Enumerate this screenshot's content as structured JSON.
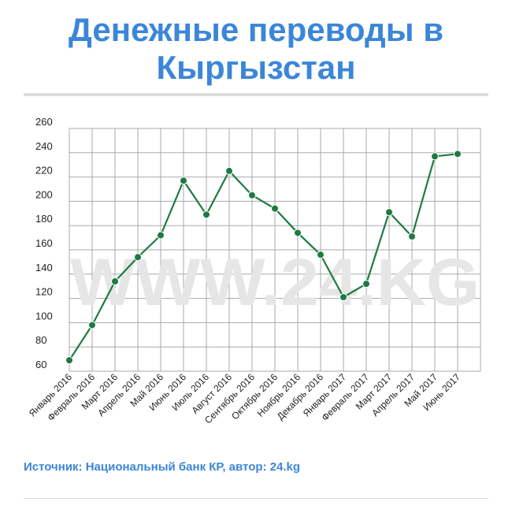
{
  "header": {
    "title_line1": "Денежные переводы в",
    "title_line2": "Кыргызстан"
  },
  "watermark": "WWW.24.KG",
  "source": "Источник: Национальный банк КР, автор: 24.kg",
  "colors": {
    "title": "#3b86d9",
    "line": "#1e7a44",
    "grid": "#aaaaaa",
    "watermark": "#e6e6e6"
  },
  "chart_data": {
    "type": "line",
    "title": "",
    "xlabel": "",
    "ylabel": "",
    "ylim": [
      60,
      260
    ],
    "yticks": [
      60,
      80,
      100,
      120,
      140,
      160,
      180,
      200,
      220,
      240,
      260
    ],
    "grid": true,
    "categories": [
      "Январь 2016",
      "Февраль 2016",
      "Март 2016",
      "Апрель 2016",
      "Май 2016",
      "Июнь 2016",
      "Июль 2016",
      "Август 2016",
      "Сентябрь 2016",
      "Октябрь 2016",
      "Ноябрь 2016",
      "Декабрь 2016",
      "Январь 2017",
      "Февраль 2017",
      "Март 2017",
      "Апрель 2017",
      "Май 2017",
      "Июнь 2017"
    ],
    "series": [
      {
        "values": [
          69,
          98,
          134,
          154,
          172,
          217,
          189,
          225,
          205,
          194,
          174,
          156,
          121,
          132,
          191,
          171,
          237,
          239
        ]
      }
    ]
  }
}
